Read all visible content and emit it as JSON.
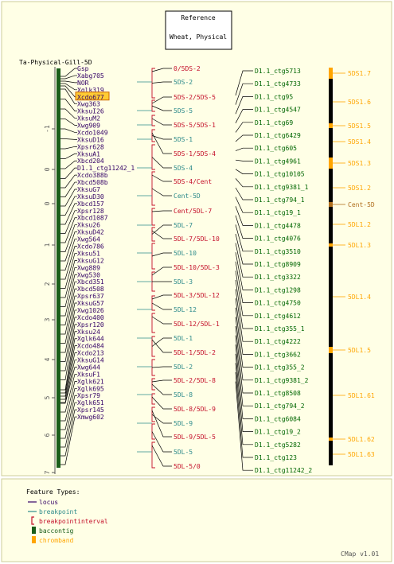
{
  "title": {
    "line1": "Reference",
    "line2": "Wheat, Physical"
  },
  "map_title": "Ta-Physical-Gill-5D",
  "axis": {
    "ticks": [
      "-1",
      "0",
      "0",
      "1",
      "2",
      "3",
      "4",
      "5",
      "6",
      "7"
    ]
  },
  "loci": [
    "Gsp",
    "Xabg705",
    "NOR",
    "Xglk319",
    "Xcdo677",
    "Xwg363",
    "XksuI26",
    "XksuM2",
    "Xwg909",
    "Xcdo1049",
    "XksuD16",
    "Xpsr628",
    "XksuA1",
    "Xbcd204",
    "D1.1_ctg11242_1",
    "Xcdo388b",
    "Xbcd508b",
    "XksuG7",
    "XksuD30",
    "Xbcd157",
    "Xpsr128",
    "Xbcd1087",
    "Xksu26",
    "XksuD42",
    "Xwg564",
    "Xcdo786",
    "Xksu51",
    "XksuG12",
    "Xwg889",
    "Xwg530",
    "Xbcd351",
    "Xbcd508",
    "Xpsr637",
    "XksuG57",
    "Xwg1026",
    "Xcdo400",
    "Xpsr120",
    "Xksu24",
    "Xglk644",
    "Xcdo484",
    "Xcdo213",
    "XksuG14",
    "Xwg644",
    "XksuF1",
    "Xglk621",
    "Xglk695",
    "Xpsr79",
    "Xglk651",
    "Xpsr145",
    "Xmwg602"
  ],
  "highlighted_locus": "Xcdo677",
  "intervals": [
    {
      "label": "0/5DS-2",
      "kind": "bpi"
    },
    {
      "label": "5DS-2",
      "kind": "bp"
    },
    {
      "label": "5DS-2/5DS-5",
      "kind": "bpi"
    },
    {
      "label": "5DS-5",
      "kind": "bp"
    },
    {
      "label": "5DS-5/5DS-1",
      "kind": "bpi"
    },
    {
      "label": "5DS-1",
      "kind": "bp"
    },
    {
      "label": "5DS-1/5DS-4",
      "kind": "bpi"
    },
    {
      "label": "5DS-4",
      "kind": "bp"
    },
    {
      "label": "5DS-4/Cent",
      "kind": "bpi"
    },
    {
      "label": "Cent-5D",
      "kind": "bp"
    },
    {
      "label": "Cent/5DL-7",
      "kind": "bpi"
    },
    {
      "label": "5DL-7",
      "kind": "bp"
    },
    {
      "label": "5DL-7/5DL-10",
      "kind": "bpi"
    },
    {
      "label": "5DL-10",
      "kind": "bp"
    },
    {
      "label": "5DL-10/5DL-3",
      "kind": "bpi"
    },
    {
      "label": "5DL-3",
      "kind": "bp"
    },
    {
      "label": "5DL-3/5DL-12",
      "kind": "bpi"
    },
    {
      "label": "5DL-12",
      "kind": "bp"
    },
    {
      "label": "5DL-12/5DL-1",
      "kind": "bpi"
    },
    {
      "label": "5DL-1",
      "kind": "bp"
    },
    {
      "label": "5DL-1/5DL-2",
      "kind": "bpi"
    },
    {
      "label": "5DL-2",
      "kind": "bp"
    },
    {
      "label": "5DL-2/5DL-8",
      "kind": "bpi"
    },
    {
      "label": "5DL-8",
      "kind": "bp"
    },
    {
      "label": "5DL-8/5DL-9",
      "kind": "bpi"
    },
    {
      "label": "5DL-9",
      "kind": "bp"
    },
    {
      "label": "5DL-9/5DL-5",
      "kind": "bpi"
    },
    {
      "label": "5DL-5",
      "kind": "bp"
    },
    {
      "label": "5DL-5/0",
      "kind": "bpi"
    }
  ],
  "contigs": [
    "D1.1_ctg5713",
    "D1.1_ctg4733",
    "D1.1_ctg95",
    "D1.1_ctg4547",
    "D1.1_ctg69",
    "D1.1_ctg6429",
    "D1.1_ctg605",
    "D1.1_ctg4961",
    "D1.1_ctg10105",
    "D1.1_ctg9381_1",
    "D1.1_ctg794_1",
    "D1.1_ctg19_1",
    "D1.1_ctg4478",
    "D1.1_ctg4076",
    "D1.1_ctg3510",
    "D1.1_ctg8909",
    "D1.1_ctg3322",
    "D1.1_ctg1298",
    "D1.1_ctg4750",
    "D1.1_ctg4612",
    "D1.1_ctg355_1",
    "D1.1_ctg4222",
    "D1.1_ctg3662",
    "D1.1_ctg355_2",
    "D1.1_ctg9381_2",
    "D1.1_ctg8508",
    "D1.1_ctg794_2",
    "D1.1_ctg6084",
    "D1.1_ctg19_2",
    "D1.1_ctg5282",
    "D1.1_ctg123",
    "D1.1_ctg11242_2"
  ],
  "chrombands": [
    {
      "label": "5DS1.7",
      "color": "#ffa500"
    },
    {
      "label": "5DS1.6",
      "color": "#ffa500"
    },
    {
      "label": "5DS1.5",
      "color": "#ffa500"
    },
    {
      "label": "5DS1.4",
      "color": "#ffa500"
    },
    {
      "label": "5DS1.3",
      "color": "#ffa500"
    },
    {
      "label": "5DS1.2",
      "color": "#ffa500"
    },
    {
      "label": "Cent-5D",
      "color": "#b06f1e"
    },
    {
      "label": "5DL1.2",
      "color": "#ffa500"
    },
    {
      "label": "5DL1.3",
      "color": "#ffa500"
    },
    {
      "label": "5DL1.4",
      "color": "#ffa500"
    },
    {
      "label": "5DL1.5",
      "color": "#ffa500"
    },
    {
      "label": "5DL1.61",
      "color": "#ffa500"
    },
    {
      "label": "5DL1.62",
      "color": "#ffa500"
    },
    {
      "label": "5DL1.63",
      "color": "#ffa500"
    }
  ],
  "legend": {
    "title": "Feature Types:",
    "items": [
      {
        "label": "locus",
        "color": "#330066"
      },
      {
        "label": "breakpoint",
        "color": "#2e8b8b"
      },
      {
        "label": "breakpointinterval",
        "color": "#c4102a"
      },
      {
        "label": "baccontig",
        "color": "#1a5e1a"
      },
      {
        "label": "chromband",
        "color": "#ffa500"
      }
    ]
  },
  "footer": "CMap v1.01",
  "colors": {
    "background": "#ffffe6",
    "frame": "#cccc99",
    "locus": "#330066",
    "breakpoint": "#2e8b8b",
    "interval": "#c4102a",
    "contig_text": "#006600",
    "baccontig_bar": "#1a5e1a",
    "band": "#ffa500",
    "centromere": "#b06f1e",
    "highlight": "#ffcc33"
  }
}
